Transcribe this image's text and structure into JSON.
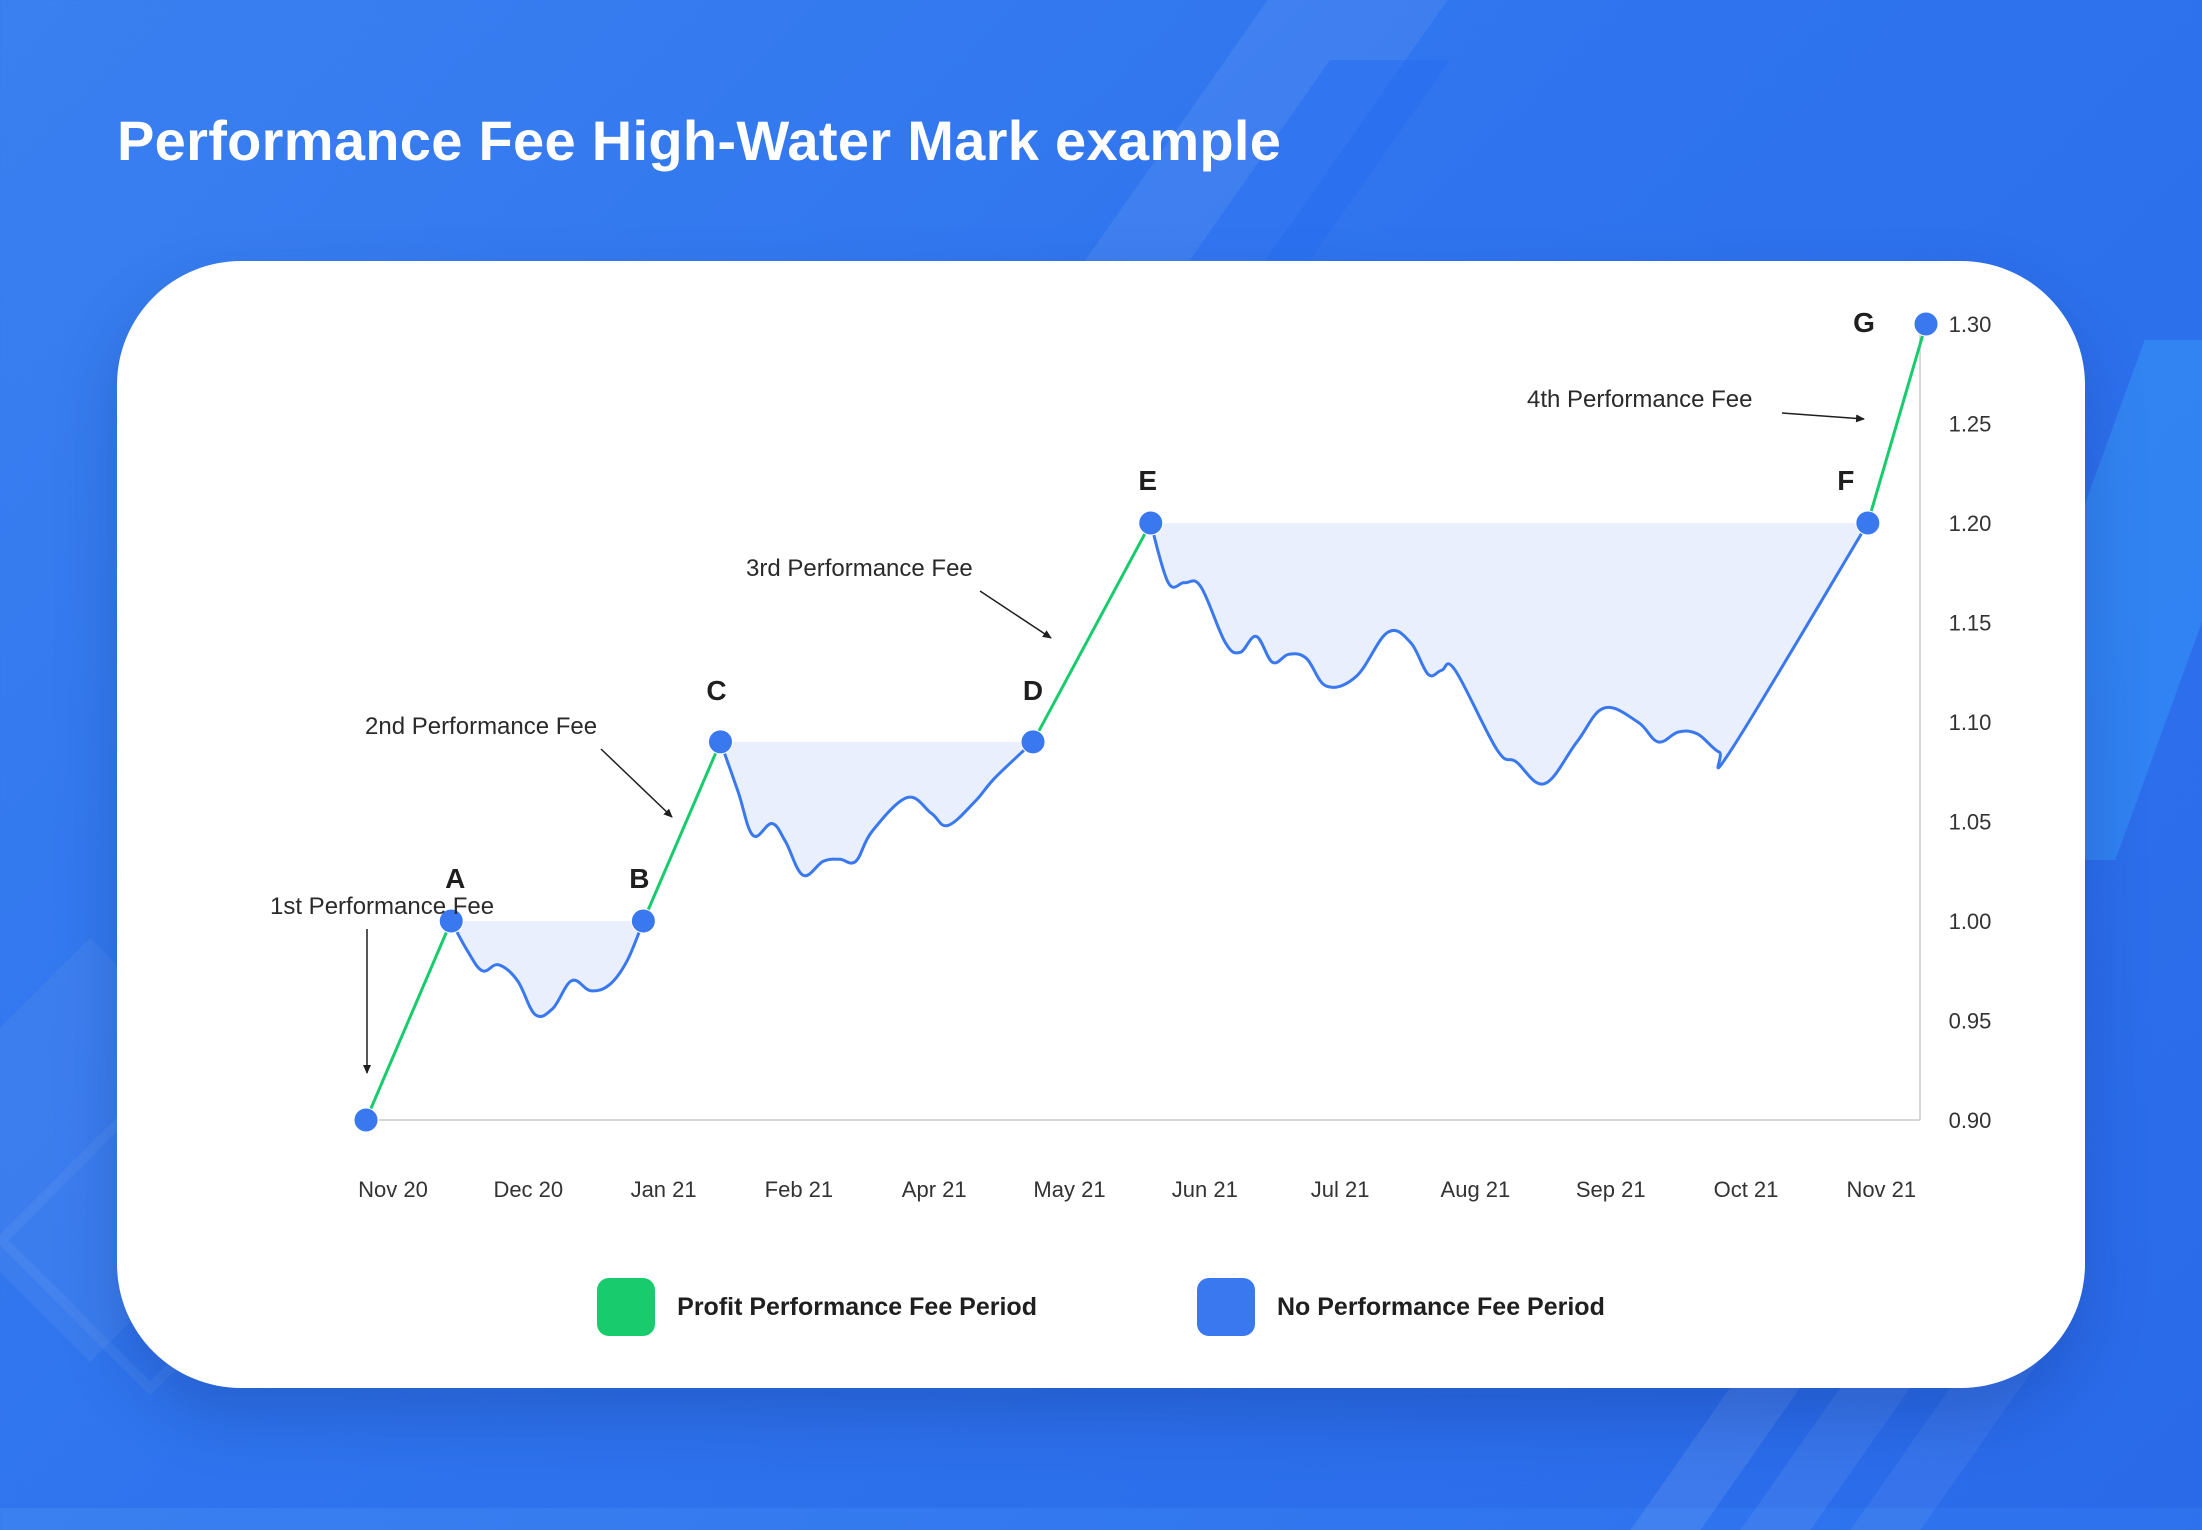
{
  "title": "Performance Fee High-Water Mark example",
  "colors": {
    "profit": "#18cc6e",
    "no_fee": "#3a78ef",
    "fill": "#e9effc",
    "axis": "#cccccc",
    "background": "#2f74ee"
  },
  "legend": {
    "profit_label": "Profit Performance Fee Period",
    "no_fee_label": "No Performance Fee Period"
  },
  "chart_data": {
    "type": "line",
    "title": "Performance Fee High-Water Mark example",
    "y_ticks": [
      "1.30",
      "1.25",
      "1.20",
      "1.15",
      "1.10",
      "1.05",
      "1.00",
      "0.95",
      "0.90"
    ],
    "ylim": [
      0.9,
      1.3
    ],
    "y_axis_side": "right",
    "x_ticks": [
      "Nov 20",
      "Dec 20",
      "Jan 21",
      "Feb 21",
      "Apr 21",
      "May 21",
      "Jun 21",
      "Jul 21",
      "Aug 21",
      "Sep 21",
      "Oct 21",
      "Nov 21"
    ],
    "grid": false,
    "legend_position": "bottom-center",
    "key_points": [
      {
        "label": "",
        "x": 0.0,
        "y": 0.9
      },
      {
        "label": "A",
        "x": 0.63,
        "y": 1.0
      },
      {
        "label": "B",
        "x": 2.05,
        "y": 1.0
      },
      {
        "label": "C",
        "x": 2.62,
        "y": 1.09
      },
      {
        "label": "D",
        "x": 4.93,
        "y": 1.09
      },
      {
        "label": "E",
        "x": 5.8,
        "y": 1.2
      },
      {
        "label": "F",
        "x": 11.1,
        "y": 1.2
      },
      {
        "label": "G",
        "x": 11.53,
        "y": 1.3
      }
    ],
    "series": [
      {
        "kind": "profit",
        "segments": [
          [
            [
              0.0,
              0.9
            ],
            [
              0.63,
              1.0
            ]
          ],
          [
            [
              2.05,
              1.0
            ],
            [
              2.62,
              1.09
            ]
          ],
          [
            [
              4.93,
              1.09
            ],
            [
              5.8,
              1.2
            ]
          ],
          [
            [
              11.1,
              1.2
            ],
            [
              11.53,
              1.3
            ]
          ]
        ]
      },
      {
        "kind": "no_fee",
        "segments": [
          [
            [
              0.63,
              1.0
            ],
            [
              0.75,
              0.985
            ],
            [
              0.86,
              0.975
            ],
            [
              0.98,
              0.978
            ],
            [
              1.12,
              0.97
            ],
            [
              1.25,
              0.953
            ],
            [
              1.38,
              0.956
            ],
            [
              1.52,
              0.97
            ],
            [
              1.66,
              0.965
            ],
            [
              1.8,
              0.968
            ],
            [
              1.93,
              0.98
            ],
            [
              2.05,
              1.0
            ]
          ],
          [
            [
              2.62,
              1.09
            ],
            [
              2.75,
              1.065
            ],
            [
              2.86,
              1.043
            ],
            [
              3.0,
              1.049
            ],
            [
              3.1,
              1.04
            ],
            [
              3.23,
              1.023
            ],
            [
              3.38,
              1.03
            ],
            [
              3.5,
              1.031
            ],
            [
              3.62,
              1.03
            ],
            [
              3.74,
              1.045
            ],
            [
              4.0,
              1.062
            ],
            [
              4.18,
              1.054
            ],
            [
              4.3,
              1.048
            ],
            [
              4.5,
              1.06
            ],
            [
              4.65,
              1.072
            ],
            [
              4.93,
              1.09
            ]
          ],
          [
            [
              5.8,
              1.2
            ],
            [
              5.93,
              1.17
            ],
            [
              6.05,
              1.17
            ],
            [
              6.17,
              1.168
            ],
            [
              6.35,
              1.14
            ],
            [
              6.46,
              1.135
            ],
            [
              6.58,
              1.143
            ],
            [
              6.7,
              1.13
            ],
            [
              6.82,
              1.134
            ],
            [
              6.95,
              1.132
            ],
            [
              7.1,
              1.118
            ],
            [
              7.32,
              1.123
            ],
            [
              7.55,
              1.145
            ],
            [
              7.72,
              1.14
            ],
            [
              7.85,
              1.124
            ],
            [
              7.95,
              1.126
            ],
            [
              8.05,
              1.126
            ],
            [
              8.36,
              1.086
            ],
            [
              8.5,
              1.08
            ],
            [
              8.71,
              1.069
            ],
            [
              8.95,
              1.09
            ],
            [
              9.15,
              1.107
            ],
            [
              9.4,
              1.1
            ],
            [
              9.55,
              1.09
            ],
            [
              9.7,
              1.095
            ],
            [
              9.84,
              1.094
            ],
            [
              10.0,
              1.085
            ],
            [
              10.1,
              1.087
            ],
            [
              11.1,
              1.2
            ]
          ]
        ]
      }
    ],
    "hwm_fill_regions": [
      {
        "from": "A",
        "to": "B",
        "level": 1.0
      },
      {
        "from": "C",
        "to": "D",
        "level": 1.09
      },
      {
        "from": "E",
        "to": "F",
        "level": 1.2
      }
    ],
    "annotations": [
      {
        "text": "1st Performance Fee",
        "target": ""
      },
      {
        "text": "2nd Performance Fee",
        "target": "B-C"
      },
      {
        "text": "3rd Performance Fee",
        "target": "D-E"
      },
      {
        "text": "4th Performance Fee",
        "target": "F-G"
      }
    ]
  }
}
